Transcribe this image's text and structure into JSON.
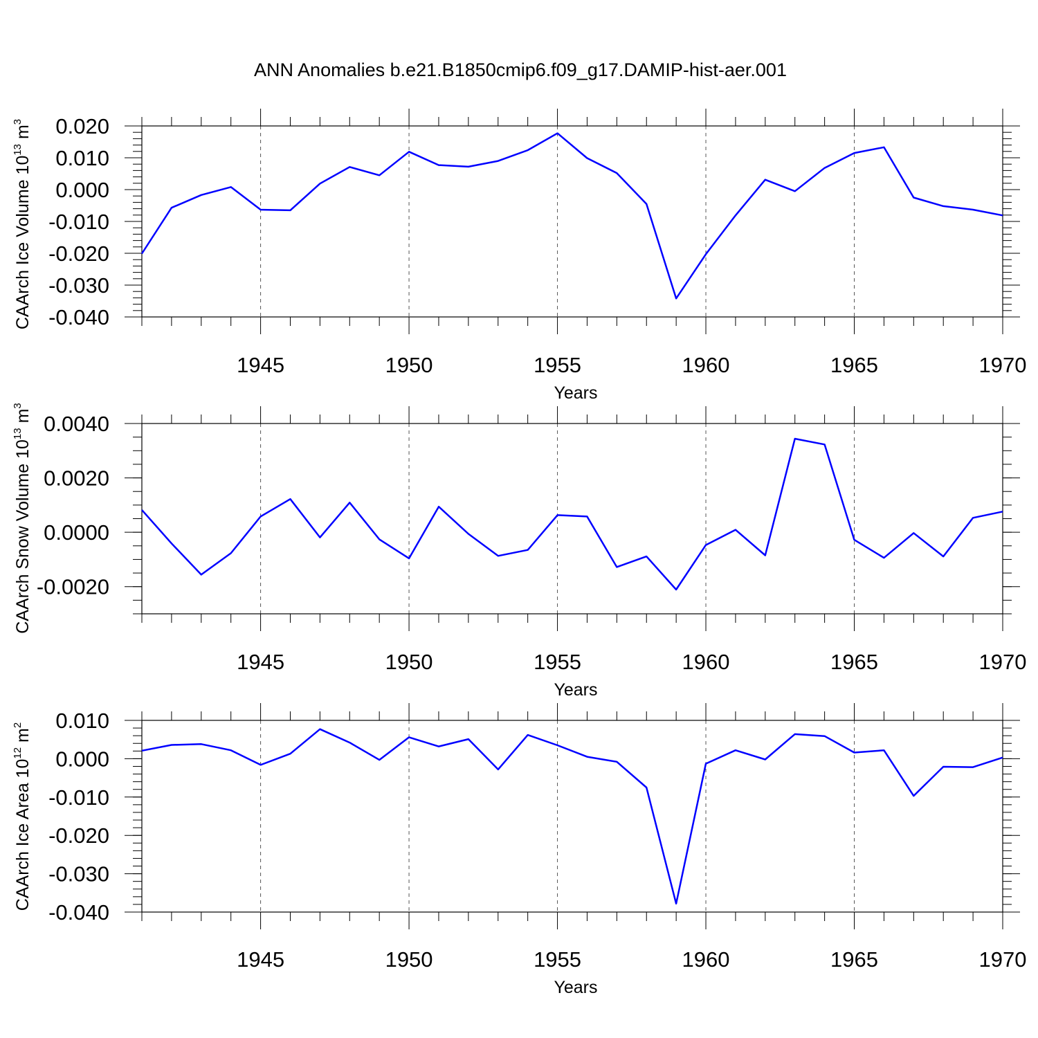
{
  "title": "ANN Anomalies b.e21.B1850cmip6.f09_g17.DAMIP-hist-aer.001",
  "chart_data": [
    {
      "type": "line",
      "xlabel": "Years",
      "ylabel": "CAArch Ice Volume 10",
      "ylabel_exp": "13",
      "ylabel_unit": " m",
      "ylabel_unit_exp": "3",
      "xlim": [
        1941,
        1970
      ],
      "ylim": [
        -0.04,
        0.02
      ],
      "x_ticks": [
        1945,
        1950,
        1955,
        1960,
        1965,
        1970
      ],
      "y_ticks": [
        "0.020",
        "0.010",
        "0.000",
        "-0.010",
        "-0.020",
        "-0.030",
        "-0.040"
      ],
      "y_tick_values": [
        0.02,
        0.01,
        0.0,
        -0.01,
        -0.02,
        -0.03,
        -0.04
      ],
      "y_minor_step": 0.002,
      "grid": "dashed vertical at major x ticks",
      "color": "#0000ff",
      "x": [
        1941,
        1942,
        1943,
        1944,
        1945,
        1946,
        1947,
        1948,
        1949,
        1950,
        1951,
        1952,
        1953,
        1954,
        1955,
        1956,
        1957,
        1958,
        1959,
        1960,
        1961,
        1962,
        1963,
        1964,
        1965,
        1966,
        1967,
        1968,
        1969,
        1970
      ],
      "values": [
        -0.0201,
        -0.0057,
        -0.0017,
        0.0008,
        -0.0063,
        -0.0065,
        0.0019,
        0.0071,
        0.0045,
        0.0119,
        0.0077,
        0.0072,
        0.009,
        0.0124,
        0.0177,
        0.0099,
        0.0052,
        -0.0045,
        -0.0342,
        -0.0203,
        -0.0081,
        0.0031,
        -0.0005,
        0.0068,
        0.0115,
        0.0133,
        -0.0025,
        -0.0052,
        -0.0063,
        -0.0081
      ]
    },
    {
      "type": "line",
      "xlabel": "Years",
      "ylabel": "CAArch Snow Volume 10",
      "ylabel_exp": "13",
      "ylabel_unit": " m",
      "ylabel_unit_exp": "3",
      "xlim": [
        1941,
        1970
      ],
      "ylim": [
        -0.003,
        0.004
      ],
      "x_ticks": [
        1945,
        1950,
        1955,
        1960,
        1965,
        1970
      ],
      "y_ticks": [
        "0.0040",
        "0.0020",
        "0.0000",
        "-0.0020"
      ],
      "y_tick_values": [
        0.004,
        0.002,
        0.0,
        -0.002
      ],
      "y_minor_step": 0.0005,
      "grid": "dashed vertical at major x ticks",
      "color": "#0000ff",
      "x": [
        1941,
        1942,
        1943,
        1944,
        1945,
        1946,
        1947,
        1948,
        1949,
        1950,
        1951,
        1952,
        1953,
        1954,
        1955,
        1956,
        1957,
        1958,
        1959,
        1960,
        1961,
        1962,
        1963,
        1964,
        1965,
        1966,
        1967,
        1968,
        1969,
        1970
      ],
      "values": [
        0.00082,
        -0.00041,
        -0.00156,
        -0.00077,
        0.00058,
        0.00122,
        -0.00019,
        0.00109,
        -0.00026,
        -0.00096,
        0.00094,
        -6e-05,
        -0.00087,
        -0.00065,
        0.00063,
        0.00058,
        -0.00128,
        -0.00089,
        -0.00211,
        -0.00047,
        9e-05,
        -0.00085,
        0.00344,
        0.00323,
        -0.00028,
        -0.00094,
        -3e-05,
        -0.00089,
        0.00053,
        0.00076
      ]
    },
    {
      "type": "line",
      "xlabel": "Years",
      "ylabel": "CAArch Ice Area 10",
      "ylabel_exp": "12",
      "ylabel_unit": " m",
      "ylabel_unit_exp": "2",
      "xlim": [
        1941,
        1970
      ],
      "ylim": [
        -0.04,
        0.01
      ],
      "x_ticks": [
        1945,
        1950,
        1955,
        1960,
        1965,
        1970
      ],
      "y_ticks": [
        "0.010",
        "0.000",
        "-0.010",
        "-0.020",
        "-0.030",
        "-0.040"
      ],
      "y_tick_values": [
        0.01,
        0.0,
        -0.01,
        -0.02,
        -0.03,
        -0.04
      ],
      "y_minor_step": 0.002,
      "grid": "dashed vertical at major x ticks",
      "color": "#0000ff",
      "x": [
        1941,
        1942,
        1943,
        1944,
        1945,
        1946,
        1947,
        1948,
        1949,
        1950,
        1951,
        1952,
        1953,
        1954,
        1955,
        1956,
        1957,
        1958,
        1959,
        1960,
        1961,
        1962,
        1963,
        1964,
        1965,
        1966,
        1967,
        1968,
        1969,
        1970
      ],
      "values": [
        0.0021,
        0.0036,
        0.0038,
        0.0022,
        -0.0016,
        0.0013,
        0.0077,
        0.0042,
        -0.0003,
        0.0056,
        0.0032,
        0.0051,
        -0.0028,
        0.0062,
        0.0035,
        0.0005,
        -0.0008,
        -0.0075,
        -0.0378,
        -0.0013,
        0.0022,
        -0.0002,
        0.0064,
        0.0059,
        0.0016,
        0.0022,
        -0.0097,
        -0.0021,
        -0.0022,
        0.0003
      ]
    }
  ]
}
